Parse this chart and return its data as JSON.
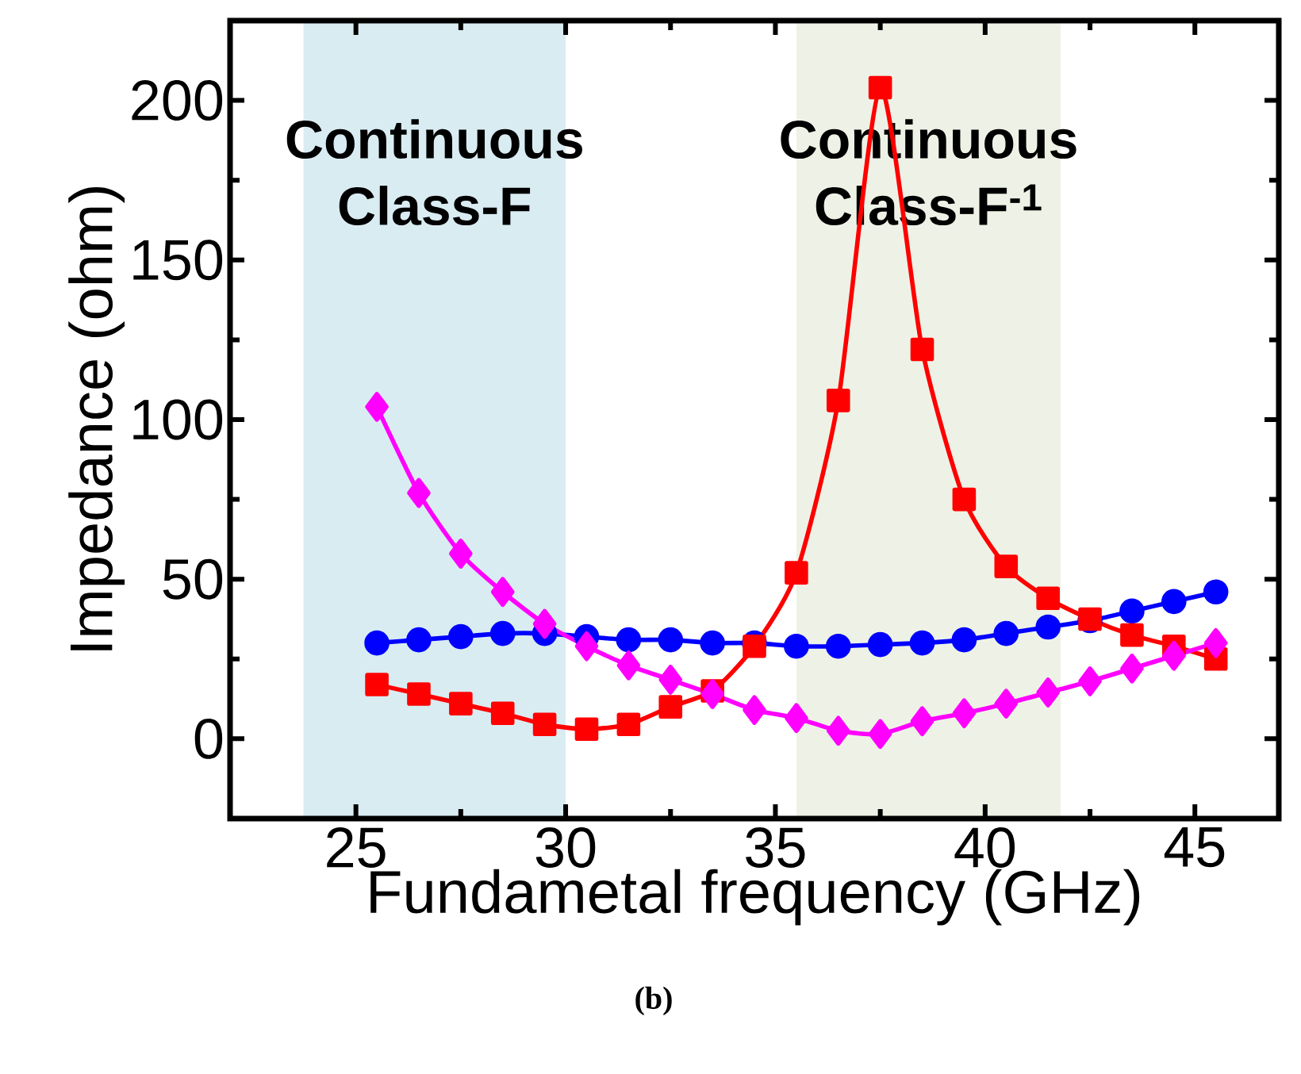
{
  "chart_data": {
    "type": "line",
    "xlabel": "Fundametal frequency (GHz)",
    "ylabel": "Impedance (ohm)",
    "x": [
      25.5,
      26.5,
      27.5,
      28.5,
      29.5,
      30.5,
      31.5,
      32.5,
      33.5,
      34.5,
      35.5,
      36.5,
      37.5,
      38.5,
      39.5,
      40.5,
      41.5,
      42.5,
      43.5,
      44.5,
      45.5
    ],
    "series": [
      {
        "color": "#0000ff",
        "marker": "circle",
        "values": [
          30,
          31,
          32,
          33,
          33,
          32,
          31,
          31,
          30,
          30,
          29,
          29,
          29.5,
          30,
          31,
          33,
          35,
          37,
          40,
          43,
          46
        ]
      },
      {
        "color": "#ff0000",
        "marker": "square",
        "values": [
          17,
          14,
          11,
          8,
          4.5,
          3,
          4.5,
          10,
          15,
          29,
          52,
          106,
          204,
          122,
          75,
          54,
          44,
          37.5,
          32.5,
          29,
          25
        ]
      },
      {
        "color": "#ff00ff",
        "marker": "diamond",
        "values": [
          104,
          77,
          58,
          46,
          36,
          29,
          23,
          18.5,
          14,
          9,
          6.5,
          2.5,
          1.5,
          5.5,
          8,
          11,
          14.5,
          18,
          22,
          26,
          30
        ]
      }
    ],
    "xlim": [
      22,
      47
    ],
    "ylim": [
      -25,
      225
    ],
    "xticks": [
      25,
      30,
      35,
      40,
      45
    ],
    "yticks": [
      0,
      50,
      100,
      150,
      200
    ],
    "line_style": "solid",
    "bands": [
      {
        "axis": "x",
        "from": 23.75,
        "to": 30,
        "label": "Continuous Class-F",
        "color": "#d9ecf2"
      },
      {
        "axis": "x",
        "from": 35.5,
        "to": 41.8,
        "label": "Continuous Class-F$^{-1}$",
        "color": "#eef2e6"
      }
    ],
    "annotations": [
      "(b)"
    ]
  }
}
